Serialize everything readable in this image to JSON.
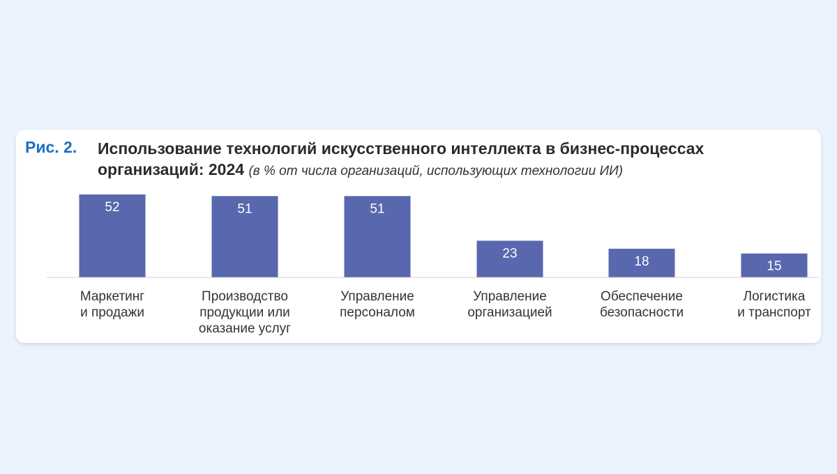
{
  "figure": {
    "label": "Рис. 2.",
    "title_line1": "Использование технологий искусственного интеллекта в бизнес-процессах",
    "title_line2": "организаций: 2024",
    "subtitle": "(в % от числа организаций, использующих технологии ИИ)"
  },
  "colors": {
    "bar": "#5967ae",
    "label_blue": "#1a6fc4",
    "background": "#ebf3fe"
  },
  "chart_data": {
    "type": "bar",
    "title": "Использование технологий искусственного интеллекта в бизнес-процессах организаций: 2024",
    "subtitle": "(в % от числа организаций, использующих технологии ИИ)",
    "categories": [
      [
        "Маркетинг",
        "и продажи"
      ],
      [
        "Производство",
        "продукции или",
        "оказание услуг"
      ],
      [
        "Управление",
        "персоналом"
      ],
      [
        "Управление",
        "организацией"
      ],
      [
        "Обеспечение",
        "безопасности"
      ],
      [
        "Логистика",
        "и транспорт"
      ]
    ],
    "values": [
      52,
      51,
      51,
      23,
      18,
      15
    ],
    "ylim": [
      0,
      52
    ],
    "grid": false,
    "legend": "none"
  }
}
